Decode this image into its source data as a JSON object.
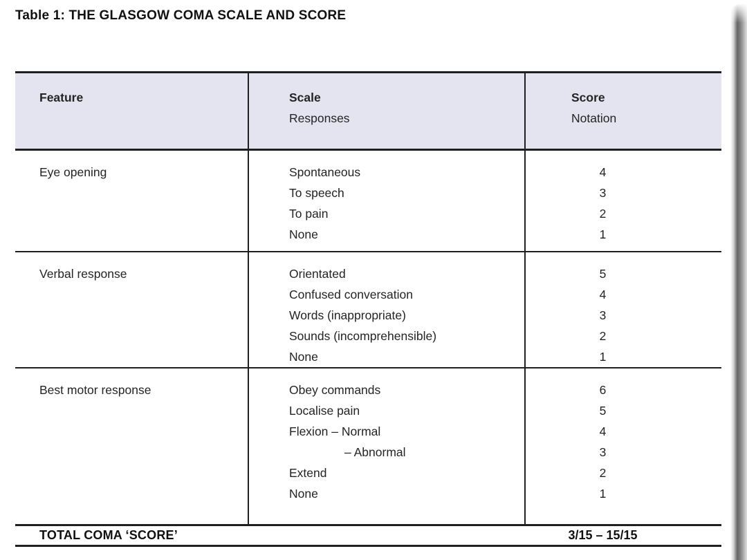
{
  "title": "Table 1: THE GLASGOW COMA SCALE AND SCORE",
  "table": {
    "header": {
      "feature": {
        "label": "Feature"
      },
      "scale": {
        "label": "Scale",
        "sublabel": "Responses"
      },
      "score": {
        "label": "Score",
        "sublabel": "Notation"
      }
    },
    "rows": [
      {
        "feature": "Eye opening",
        "scale": [
          "Spontaneous",
          "To speech",
          "To pain",
          "None"
        ],
        "scores": [
          "4",
          "3",
          "2",
          "1"
        ],
        "indent_lines": []
      },
      {
        "feature": "Verbal response",
        "scale": [
          "Orientated",
          "Confused conversation",
          "Words (inappropriate)",
          "Sounds (incomprehensible)",
          "None"
        ],
        "scores": [
          "5",
          "4",
          "3",
          "2",
          "1"
        ],
        "indent_lines": []
      },
      {
        "feature": "Best motor response",
        "scale": [
          "Obey commands",
          "Localise pain",
          "Flexion – Normal",
          "– Abnormal",
          "Extend",
          "None"
        ],
        "scores": [
          "6",
          "5",
          "4",
          "3",
          "2",
          "1"
        ],
        "indent_lines": [
          3
        ]
      }
    ],
    "footer": {
      "label": "TOTAL COMA ‘SCORE’",
      "value": "3/15 – 15/15"
    }
  },
  "colors": {
    "header_bg": "#e4e4f0",
    "rule": "#1f1f1f",
    "text": "#222222"
  }
}
